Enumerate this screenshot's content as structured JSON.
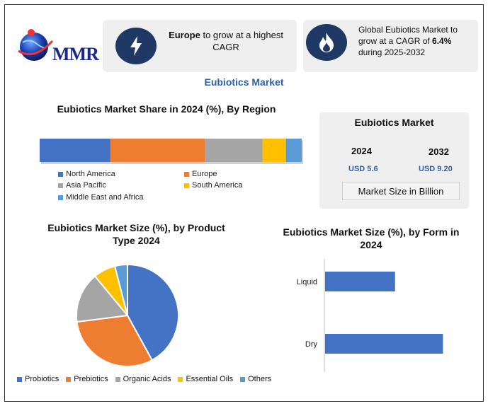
{
  "header": {
    "logo_text": "MMR",
    "card1": {
      "bold": "Europe",
      "text": " to grow at a highest CAGR",
      "icon": "lightning-icon"
    },
    "card2": {
      "text_pre": "Global Eubiotics Market to grow at a CAGR of ",
      "bold": "6.4%",
      "text_post": " during 2025-2032",
      "icon": "flame-icon"
    }
  },
  "main_title": "Eubiotics Market",
  "colors": {
    "north_america": "#4472c4",
    "europe": "#ed7d31",
    "asia_pacific": "#a5a5a5",
    "south_america": "#ffc000",
    "mea": "#5b9bd5",
    "dark_navy": "#1f3864"
  },
  "market_size": {
    "title": "Eubiotics Market",
    "year1": "2024",
    "value1": "USD 5.6",
    "year2": "2032",
    "value2": "USD 9.20",
    "unit": "Market Size in Billion"
  },
  "chart_data": [
    {
      "type": "bar",
      "orientation": "horizontal-stacked",
      "title": "Eubiotics Market Share in 2024 (%), By Region",
      "series": [
        {
          "name": "North America",
          "value": 27
        },
        {
          "name": "Europe",
          "value": 36
        },
        {
          "name": "Asia Pacific",
          "value": 22
        },
        {
          "name": "South America",
          "value": 9
        },
        {
          "name": "Middle East and Africa",
          "value": 6
        }
      ]
    },
    {
      "type": "pie",
      "title": "Eubiotics Market Size (%), by Product Type 2024",
      "categories": [
        "Probiotics",
        "Prebiotics",
        "Organic Acids",
        "Essential Oils",
        "Others"
      ],
      "values": [
        42,
        31,
        16,
        7,
        4
      ]
    },
    {
      "type": "bar",
      "orientation": "horizontal",
      "title": "Eubiotics Market  Size (%), by Form in 2024",
      "categories": [
        "Liquid",
        "Dry"
      ],
      "values": [
        38,
        64
      ]
    }
  ]
}
